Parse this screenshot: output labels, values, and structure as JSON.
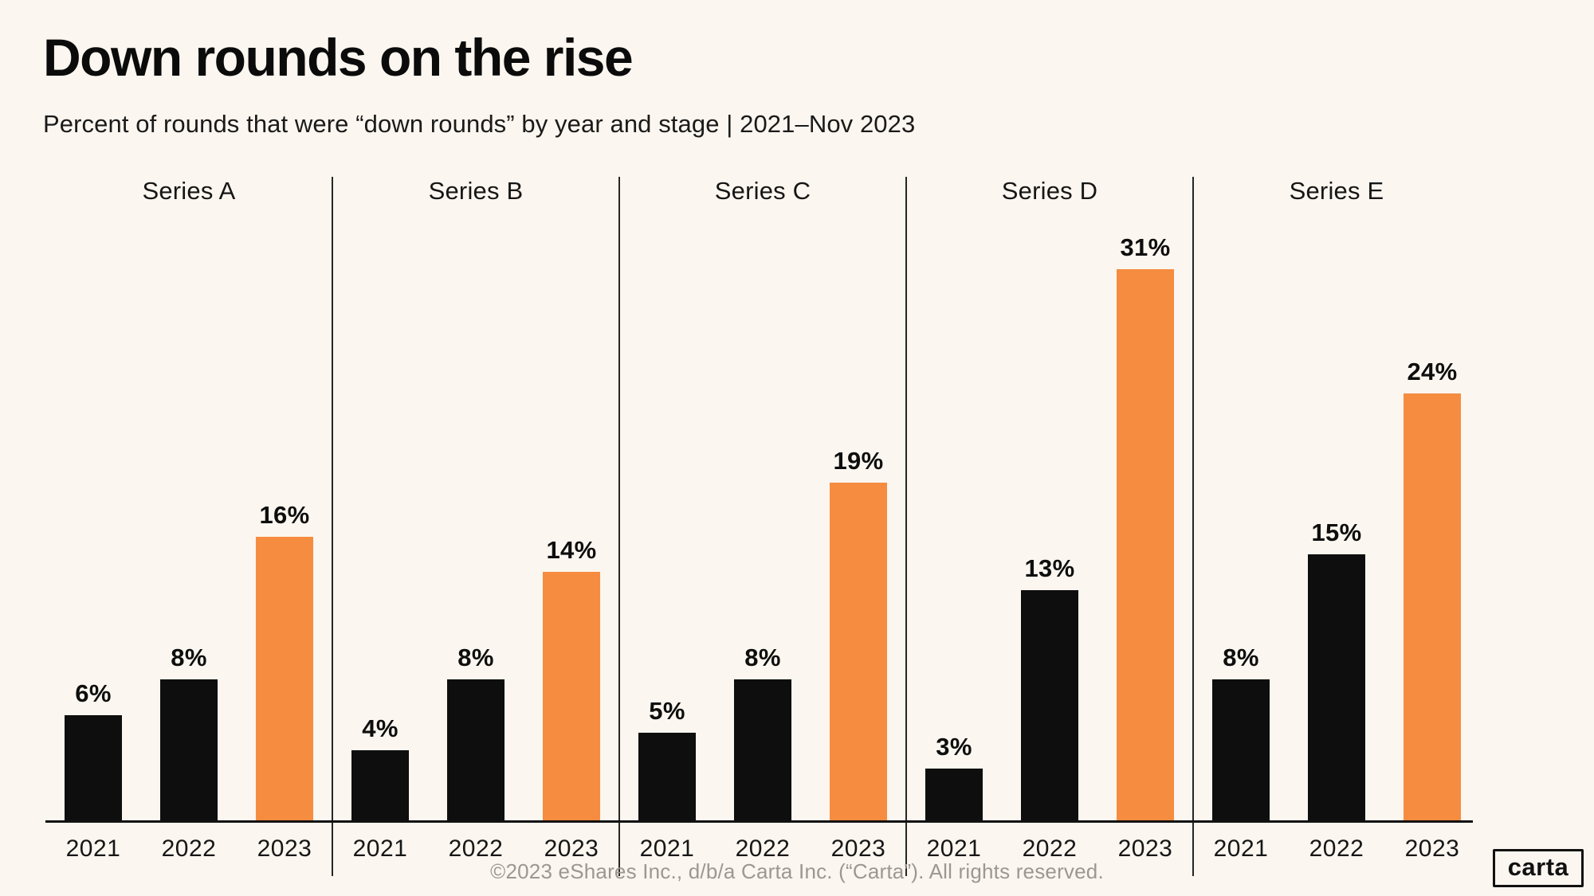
{
  "title": "Down rounds on the rise",
  "subtitle": "Percent of rounds that were “down rounds” by year and stage | 2021–Nov 2023",
  "footer": "©2023 eShares Inc., d/b/a Carta Inc. (“Carta”). All rights reserved.",
  "logo_text": "carta",
  "colors": {
    "background": "#FBF6EF",
    "bar_black": "#0E0E0E",
    "bar_orange": "#F68C40",
    "axis": "#121212",
    "divider": "#262626",
    "footer_text": "#9B9792"
  },
  "chart_data": {
    "type": "bar",
    "layout": "faceted",
    "title": "Down rounds on the rise",
    "subtitle": "Percent of rounds that were “down rounds” by year and stage | 2021–Nov 2023",
    "categories": [
      "Series A",
      "Series B",
      "Series C",
      "Series D",
      "Series E"
    ],
    "series": [
      {
        "name": "2021",
        "color": "#0E0E0E",
        "values": [
          6,
          4,
          5,
          3,
          8
        ]
      },
      {
        "name": "2022",
        "color": "#0E0E0E",
        "values": [
          8,
          8,
          8,
          13,
          15
        ]
      },
      {
        "name": "2023",
        "color": "#F68C40",
        "values": [
          16,
          14,
          19,
          31,
          24
        ]
      }
    ],
    "unit": "%",
    "value_labels_shown": true,
    "xlabel": "",
    "ylabel": "",
    "ylim": [
      0,
      34.5
    ],
    "grid": "off",
    "legend": "none"
  }
}
